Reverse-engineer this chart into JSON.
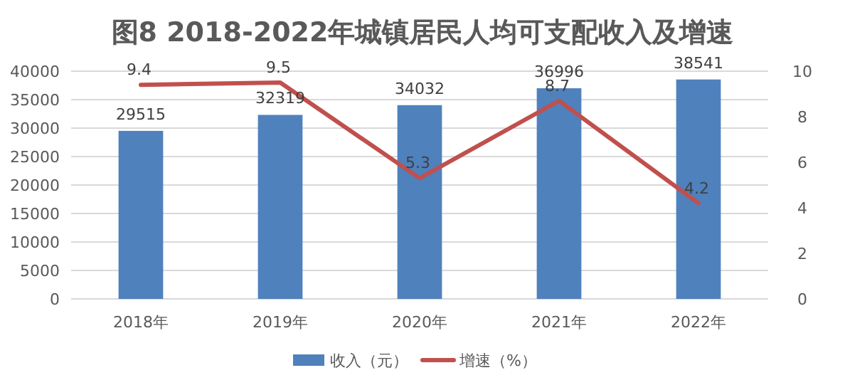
{
  "chart_data": {
    "type": "bar",
    "title": "图8  2018-2022年城镇居民人均可支配收入及增速",
    "categories": [
      "2018年",
      "2019年",
      "2020年",
      "2021年",
      "2022年"
    ],
    "series": [
      {
        "name": "收入（元）",
        "color": "#4f81bd",
        "values": [
          29515,
          32319,
          34032,
          36996,
          38541
        ]
      },
      {
        "name": "增速（%）",
        "type": "line",
        "axis": "y2",
        "color": "#c0504d",
        "values": [
          9.4,
          9.5,
          5.3,
          8.7,
          4.2
        ]
      }
    ],
    "ylim": [
      0,
      40000
    ],
    "yticks": [
      0,
      5000,
      10000,
      15000,
      20000,
      25000,
      30000,
      35000,
      40000
    ],
    "y2lim": [
      0,
      10
    ],
    "y2ticks": [
      0,
      2,
      4,
      6,
      8,
      10
    ],
    "data_labels": true,
    "grid": "y",
    "legend": "bottom",
    "marker": "none",
    "line_style": "solid"
  }
}
